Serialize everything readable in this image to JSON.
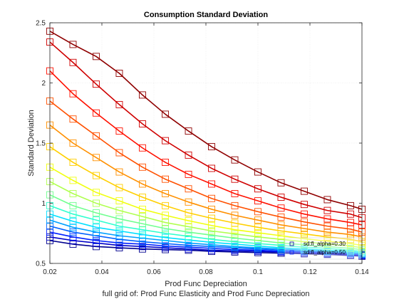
{
  "chart_data": {
    "type": "line",
    "title": "Consumption Standard Deviation",
    "xlabel": "Prod Func Depreciation",
    "ylabel": "Standard Deviation",
    "footnote": "full grid of: Prod Func Elasticity and Prod Func Depreciation",
    "xlim": [
      0.02,
      0.14
    ],
    "ylim": [
      0.5,
      2.5
    ],
    "xticks": [
      "0.02",
      "0.04",
      "0.06",
      "0.08",
      "0.1",
      "0.12",
      "0.14"
    ],
    "yticks": [
      "0.5",
      "1",
      "1.5",
      "2",
      "2.5"
    ],
    "grid": true,
    "legend_position": "bottom-right",
    "x": [
      0.02,
      0.0289,
      0.0378,
      0.0467,
      0.0556,
      0.0644,
      0.0733,
      0.0822,
      0.0911,
      0.1,
      0.1089,
      0.1178,
      0.1267,
      0.1356,
      0.14
    ],
    "series": [
      {
        "color": "#00008f",
        "values": [
          0.69,
          0.66,
          0.64,
          0.63,
          0.62,
          0.615,
          0.61,
          0.6,
          0.595,
          0.59,
          0.585,
          0.58,
          0.575,
          0.565,
          0.56
        ]
      },
      {
        "color": "#0000c8",
        "values": [
          0.72,
          0.69,
          0.67,
          0.65,
          0.64,
          0.63,
          0.62,
          0.61,
          0.605,
          0.6,
          0.595,
          0.585,
          0.58,
          0.57,
          0.565
        ]
      },
      {
        "color": "#0020ff",
        "values": [
          0.76,
          0.72,
          0.69,
          0.67,
          0.66,
          0.645,
          0.635,
          0.625,
          0.615,
          0.61,
          0.6,
          0.595,
          0.585,
          0.58,
          0.57
        ]
      },
      {
        "color": "#0060ff",
        "values": [
          0.81,
          0.76,
          0.73,
          0.7,
          0.68,
          0.665,
          0.65,
          0.64,
          0.63,
          0.62,
          0.61,
          0.6,
          0.595,
          0.585,
          0.575
        ]
      },
      {
        "color": "#00a0ff",
        "values": [
          0.86,
          0.8,
          0.76,
          0.73,
          0.71,
          0.69,
          0.67,
          0.655,
          0.64,
          0.63,
          0.62,
          0.61,
          0.6,
          0.59,
          0.58
        ]
      },
      {
        "color": "#00e0ff",
        "values": [
          0.91,
          0.85,
          0.8,
          0.77,
          0.74,
          0.715,
          0.695,
          0.675,
          0.66,
          0.645,
          0.63,
          0.62,
          0.61,
          0.6,
          0.59
        ]
      },
      {
        "color": "#30ffcf",
        "values": [
          0.98,
          0.91,
          0.86,
          0.81,
          0.78,
          0.75,
          0.725,
          0.7,
          0.68,
          0.665,
          0.65,
          0.635,
          0.625,
          0.61,
          0.6
        ]
      },
      {
        "color": "#70ff8f",
        "values": [
          1.07,
          0.98,
          0.92,
          0.87,
          0.83,
          0.79,
          0.76,
          0.735,
          0.71,
          0.69,
          0.67,
          0.655,
          0.64,
          0.625,
          0.615
        ]
      },
      {
        "color": "#b0ff4f",
        "values": [
          1.18,
          1.08,
          1.0,
          0.94,
          0.89,
          0.84,
          0.805,
          0.77,
          0.745,
          0.72,
          0.7,
          0.68,
          0.66,
          0.645,
          0.63
        ]
      },
      {
        "color": "#f0ff0f",
        "values": [
          1.3,
          1.19,
          1.09,
          1.02,
          0.95,
          0.9,
          0.855,
          0.815,
          0.78,
          0.755,
          0.73,
          0.705,
          0.685,
          0.665,
          0.65
        ]
      },
      {
        "color": "#ffcf00",
        "values": [
          1.47,
          1.34,
          1.23,
          1.13,
          1.05,
          0.98,
          0.92,
          0.875,
          0.835,
          0.8,
          0.77,
          0.745,
          0.72,
          0.7,
          0.68
        ]
      },
      {
        "color": "#ff9000",
        "values": [
          1.65,
          1.5,
          1.38,
          1.26,
          1.16,
          1.08,
          1.01,
          0.95,
          0.9,
          0.86,
          0.82,
          0.79,
          0.76,
          0.74,
          0.72
        ]
      },
      {
        "color": "#ff5000",
        "values": [
          1.85,
          1.7,
          1.56,
          1.42,
          1.3,
          1.2,
          1.12,
          1.04,
          0.98,
          0.93,
          0.885,
          0.845,
          0.81,
          0.785,
          0.76
        ]
      },
      {
        "color": "#ff1000",
        "values": [
          2.1,
          1.91,
          1.75,
          1.6,
          1.46,
          1.34,
          1.24,
          1.16,
          1.08,
          1.02,
          0.96,
          0.91,
          0.87,
          0.84,
          0.82
        ]
      },
      {
        "color": "#cf0000",
        "values": [
          2.34,
          2.17,
          1.99,
          1.82,
          1.66,
          1.52,
          1.4,
          1.29,
          1.2,
          1.12,
          1.05,
          0.99,
          0.94,
          0.91,
          0.88
        ]
      },
      {
        "color": "#8f0000",
        "values": [
          2.43,
          2.32,
          2.22,
          2.08,
          1.9,
          1.74,
          1.6,
          1.47,
          1.36,
          1.26,
          1.17,
          1.1,
          1.03,
          0.98,
          0.95
        ]
      }
    ],
    "legend": [
      {
        "label": "sd:fl_alpha=0.30",
        "color": "#00008f"
      },
      {
        "label": "sd:fl_alpha=0.50",
        "color": "#0020ff"
      }
    ]
  }
}
